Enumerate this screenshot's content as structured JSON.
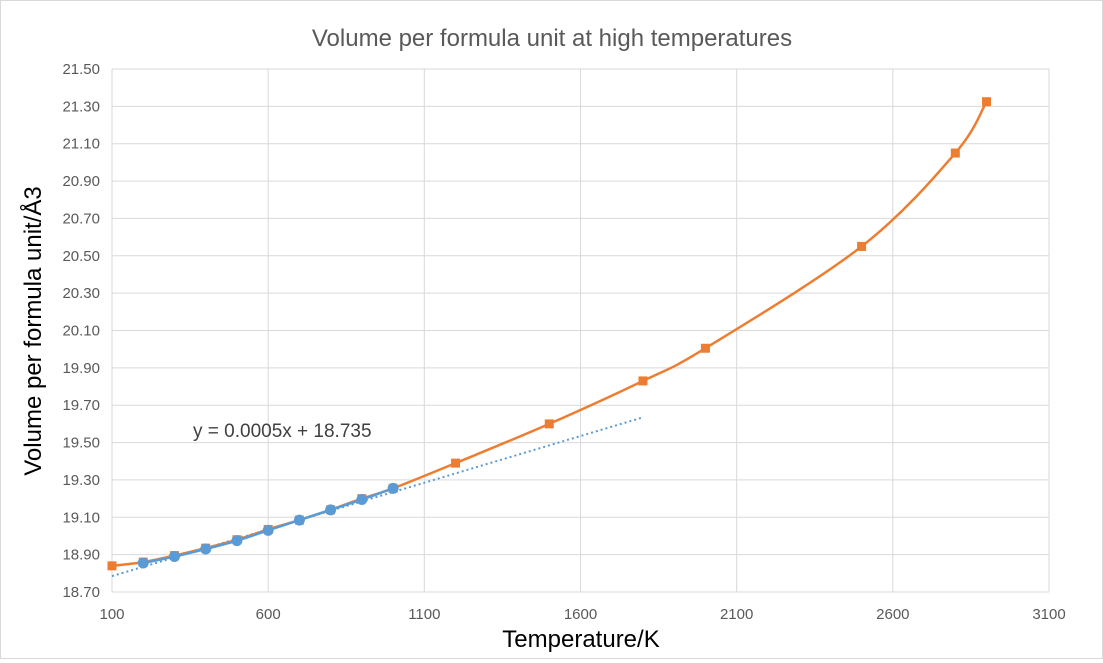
{
  "chart_data": {
    "type": "scatter",
    "title": "Volume per formula unit at high temperatures",
    "xlabel": "Temperature/K",
    "ylabel": "Volume per formula unit/Å3",
    "xlim": [
      100,
      3100
    ],
    "ylim": [
      18.7,
      21.5
    ],
    "x_ticks": [
      "100",
      "600",
      "1100",
      "1600",
      "2100",
      "2600",
      "3100"
    ],
    "y_ticks": [
      "18.70",
      "18.90",
      "19.10",
      "19.30",
      "19.50",
      "19.70",
      "19.90",
      "20.10",
      "20.30",
      "20.50",
      "20.70",
      "20.90",
      "21.10",
      "21.30",
      "21.50"
    ],
    "grid": true,
    "legend": "none",
    "series": [
      {
        "color": "#ed7d31",
        "marker": "square",
        "line": "smooth",
        "x": [
          100,
          200,
          300,
          400,
          500,
          600,
          700,
          800,
          900,
          1000,
          1200,
          1500,
          1800,
          2000,
          2500,
          2800,
          2900
        ],
        "y": [
          18.84,
          18.86,
          18.895,
          18.935,
          18.98,
          19.035,
          19.085,
          19.14,
          19.2,
          19.255,
          19.39,
          19.6,
          19.83,
          20.005,
          20.55,
          21.05,
          21.325
        ]
      },
      {
        "color": "#5b9bd5",
        "marker": "circle",
        "line": "smooth",
        "x": [
          200,
          300,
          400,
          500,
          600,
          700,
          800,
          900,
          1000
        ],
        "y": [
          18.855,
          18.89,
          18.93,
          18.975,
          19.03,
          19.085,
          19.14,
          19.195,
          19.255
        ]
      }
    ],
    "trendline": {
      "color": "#5b9bd5",
      "style": "dotted",
      "slope": 0.0005,
      "intercept": 18.735,
      "x_range": [
        100,
        1800
      ],
      "equation": "y = 0.0005x + 18.735"
    }
  }
}
